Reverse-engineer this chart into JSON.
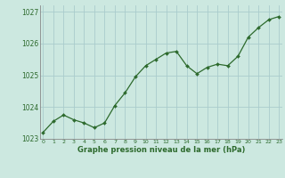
{
  "x": [
    0,
    1,
    2,
    3,
    4,
    5,
    6,
    7,
    8,
    9,
    10,
    11,
    12,
    13,
    14,
    15,
    16,
    17,
    18,
    19,
    20,
    21,
    22,
    23
  ],
  "y": [
    1023.2,
    1023.55,
    1023.75,
    1023.6,
    1023.5,
    1023.35,
    1023.5,
    1024.05,
    1024.45,
    1024.95,
    1025.3,
    1025.5,
    1025.7,
    1025.75,
    1025.3,
    1025.05,
    1025.25,
    1025.35,
    1025.3,
    1025.6,
    1026.2,
    1026.5,
    1026.75,
    1026.85
  ],
  "line_color": "#2d6a2d",
  "marker_color": "#2d6a2d",
  "bg_color": "#cce8e0",
  "grid_color": "#aacccc",
  "axis_label_color": "#2d6a2d",
  "title": "Graphe pression niveau de la mer (hPa)",
  "ylim": [
    1023.0,
    1027.2
  ],
  "xlim": [
    -0.3,
    23.3
  ],
  "yticks": [
    1023,
    1024,
    1025,
    1026,
    1027
  ],
  "xticks": [
    0,
    1,
    2,
    3,
    4,
    5,
    6,
    7,
    8,
    9,
    10,
    11,
    12,
    13,
    14,
    15,
    16,
    17,
    18,
    19,
    20,
    21,
    22,
    23
  ]
}
